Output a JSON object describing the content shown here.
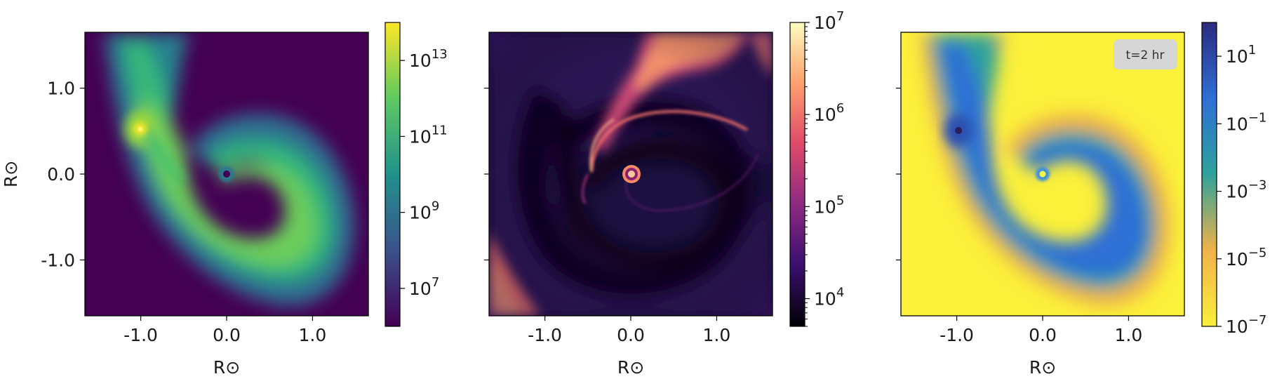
{
  "chart_data": [
    {
      "type": "heatmap",
      "xlabel": "R⊙",
      "ylabel": "R⊙",
      "xlim": [
        -1.65,
        1.65
      ],
      "ylim": [
        -1.65,
        1.65
      ],
      "x_ticks": [
        "-1.0",
        "0.0",
        "1.0"
      ],
      "y_ticks": [
        "1.0",
        "0.0",
        "-1.0"
      ],
      "colorbar": {
        "scale": "log",
        "range": [
          1000000.0,
          100000000000000.0
        ],
        "ticks": [
          {
            "base": "10",
            "exp": "13"
          },
          {
            "base": "10",
            "exp": "11"
          },
          {
            "base": "10",
            "exp": "9"
          },
          {
            "base": "10",
            "exp": "7"
          }
        ]
      },
      "colormap": [
        "#440154",
        "#3b528b",
        "#21918c",
        "#5ec962",
        "#fde725"
      ],
      "points_of_interest": [
        {
          "label": "companion",
          "x": -1.0,
          "y": 0.5
        },
        {
          "label": "primary",
          "x": 0.0,
          "y": 0.0
        }
      ]
    },
    {
      "type": "heatmap",
      "xlabel": "R⊙",
      "ylabel": "",
      "xlim": [
        -1.65,
        1.65
      ],
      "ylim": [
        -1.65,
        1.65
      ],
      "x_ticks": [
        "-1.0",
        "0.0",
        "1.0"
      ],
      "colorbar": {
        "scale": "log",
        "range": [
          5000.0,
          10000000.0
        ],
        "ticks": [
          {
            "base": "10",
            "exp": "7"
          },
          {
            "base": "10",
            "exp": "6"
          },
          {
            "base": "10",
            "exp": "5"
          },
          {
            "base": "10",
            "exp": "4"
          }
        ]
      },
      "colormap": [
        "#000004",
        "#3b0f70",
        "#8c2981",
        "#de4968",
        "#fe9f6d",
        "#fcfdbf"
      ]
    },
    {
      "type": "heatmap",
      "xlabel": "R⊙",
      "ylabel": "",
      "xlim": [
        -1.65,
        1.65
      ],
      "ylim": [
        -1.65,
        1.65
      ],
      "x_ticks": [
        "-1.0",
        "0.0",
        "1.0"
      ],
      "annotation": "t=2 hr",
      "colorbar": {
        "scale": "log",
        "range": [
          1e-07,
          100.0
        ],
        "ticks": [
          {
            "base": "10",
            "exp": "1"
          },
          {
            "base": "10",
            "exp": "−1"
          },
          {
            "base": "10",
            "exp": "−3"
          },
          {
            "base": "10",
            "exp": "−5"
          },
          {
            "base": "10",
            "exp": "−7"
          }
        ]
      },
      "colormap": [
        "#fbf03a",
        "#f0b24a",
        "#2fa29a",
        "#2e6fd5",
        "#2c2a7e"
      ]
    }
  ]
}
